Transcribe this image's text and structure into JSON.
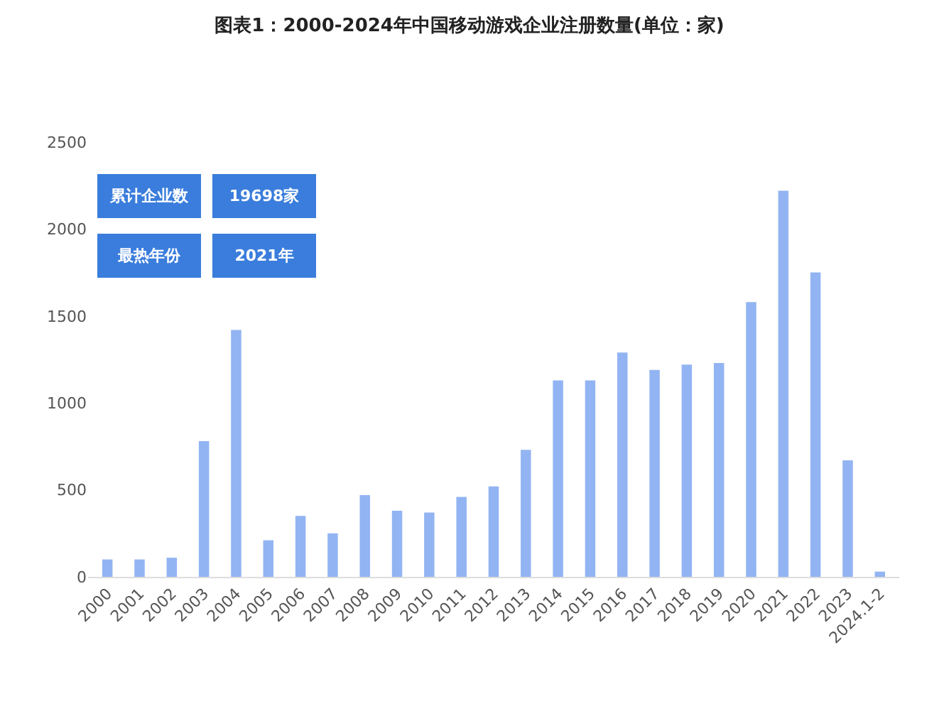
{
  "chart_data": {
    "type": "bar",
    "title": "图表1：2000-2024年中国移动游戏企业注册数量(单位：家)",
    "categories": [
      "2000",
      "2001",
      "2002",
      "2003",
      "2004",
      "2005",
      "2006",
      "2007",
      "2008",
      "2009",
      "2010",
      "2011",
      "2012",
      "2013",
      "2014",
      "2015",
      "2016",
      "2017",
      "2018",
      "2019",
      "2020",
      "2021",
      "2022",
      "2023",
      "2024.1-2"
    ],
    "values": [
      100,
      100,
      110,
      780,
      1420,
      210,
      350,
      250,
      470,
      380,
      370,
      460,
      520,
      730,
      1130,
      1130,
      1290,
      1190,
      1220,
      1230,
      1580,
      2220,
      1750,
      670,
      30
    ],
    "color": "#92b4f2",
    "ylim": [
      0,
      2500
    ],
    "yticks": [
      0,
      500,
      1000,
      1500,
      2000,
      2500
    ],
    "annotations": [
      "累计企业数",
      "19698家",
      "最热年份",
      "2021年"
    ]
  }
}
